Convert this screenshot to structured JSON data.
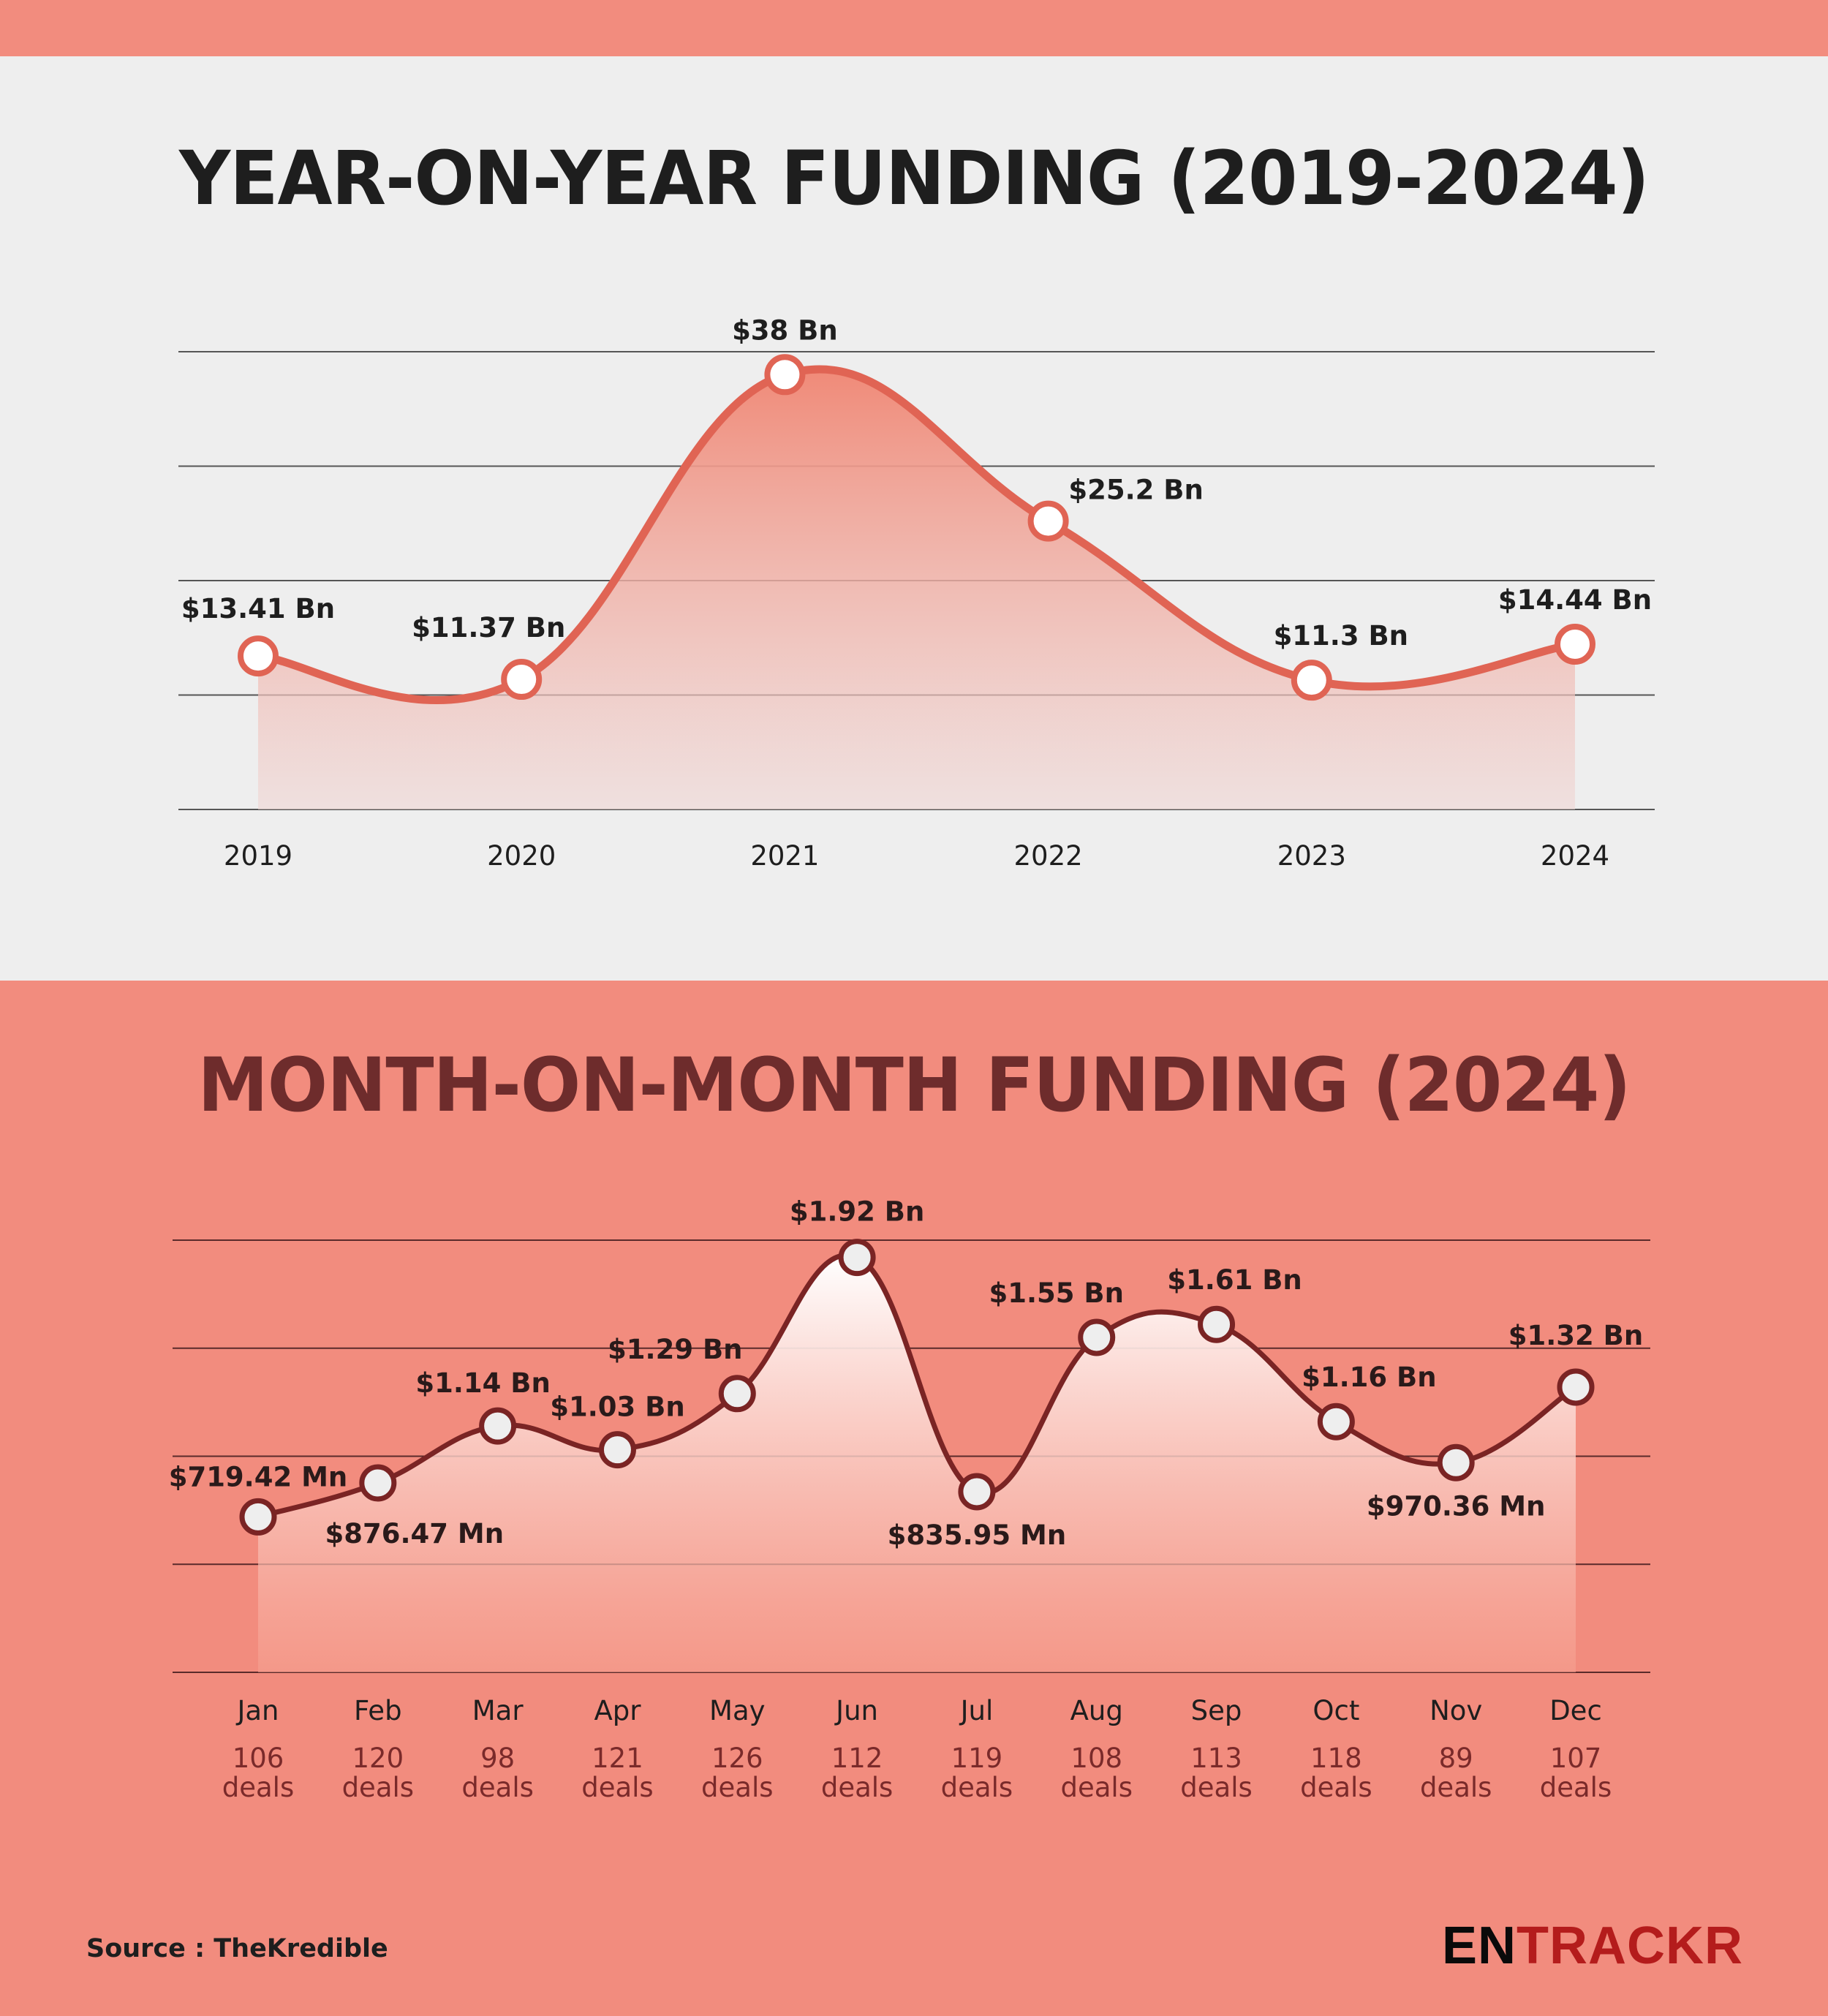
{
  "yoy": {
    "title": "YEAR-ON-YEAR FUNDING (2019-2024)"
  },
  "mom": {
    "title": "MONTH-ON-MONTH FUNDING (2024)"
  },
  "footer": {
    "source": "Source : TheKredible",
    "logo_part1": "EN",
    "logo_part2": "TRACKR"
  },
  "colors": {
    "top_bg": "#eeeeee",
    "bottom_bg": "#f28c7e",
    "yoy_line": "#e06454",
    "mom_line": "#7a2424",
    "title_dark": "#1e1e1e",
    "title_maroon": "#6e2c2c",
    "logo_red": "#b41c1c"
  },
  "chart_data": [
    {
      "type": "area",
      "title": "YEAR-ON-YEAR FUNDING (2019-2024)",
      "xlabel": "",
      "ylabel": "",
      "unit": "USD Bn",
      "categories": [
        "2019",
        "2020",
        "2021",
        "2022",
        "2023",
        "2024"
      ],
      "values": [
        13.41,
        11.37,
        38,
        25.2,
        11.3,
        14.44
      ],
      "data_labels": [
        "$13.41 Bn",
        "$11.37 Bn",
        "$38 Bn",
        "$25.2 Bn",
        "$11.3 Bn",
        "$14.44 Bn"
      ],
      "ylim": [
        0,
        40
      ],
      "gridlines": [
        0,
        10,
        20,
        30,
        40
      ],
      "grid": true,
      "smooth": true
    },
    {
      "type": "area",
      "title": "MONTH-ON-MONTH FUNDING (2024)",
      "xlabel": "",
      "ylabel": "",
      "unit": "USD Bn",
      "categories": [
        "Jan",
        "Feb",
        "Mar",
        "Apr",
        "May",
        "Jun",
        "Jul",
        "Aug",
        "Sep",
        "Oct",
        "Nov",
        "Dec"
      ],
      "values": [
        0.71942,
        0.87647,
        1.14,
        1.03,
        1.29,
        1.92,
        0.83595,
        1.55,
        1.61,
        1.16,
        0.97036,
        1.32
      ],
      "data_labels": [
        "$719.42 Mn",
        "$876.47 Mn",
        "$1.14 Bn",
        "$1.03 Bn",
        "$1.29 Bn",
        "$1.92 Bn",
        "$835.95 Mn",
        "$1.55 Bn",
        "$1.61 Bn",
        "$1.16 Bn",
        "$970.36 Mn",
        "$1.32 Bn"
      ],
      "label_positions": [
        "above",
        "below",
        "above",
        "above",
        "left",
        "above",
        "below",
        "above",
        "above",
        "above",
        "below",
        "above"
      ],
      "deals": [
        106,
        120,
        98,
        121,
        126,
        112,
        119,
        108,
        113,
        118,
        89,
        107
      ],
      "deals_suffix": "deals",
      "ylim": [
        0,
        2
      ],
      "gridlines": [
        0,
        0.5,
        1,
        1.5,
        2
      ],
      "grid": true,
      "smooth": true
    }
  ]
}
